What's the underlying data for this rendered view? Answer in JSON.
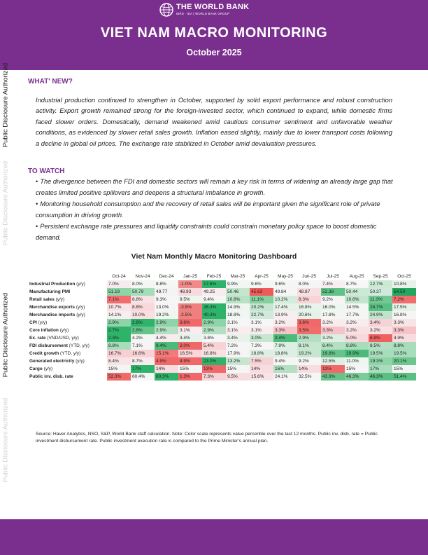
{
  "header": {
    "logo_name": "THE WORLD BANK",
    "logo_sub": "IBRD · IDA | WORLD BANK GROUP",
    "title": "VIET NAM MACRO MONITORING",
    "date": "October 2025"
  },
  "side_labels": [
    "Public Disclosure Authorized",
    "Public Disclosure Authorized",
    "Public Disclosure Authorized",
    "Public Disclosure Authorized"
  ],
  "whats_new": {
    "heading": "WHAT' NEW?",
    "text": "Industrial production continued to strengthen in October, supported by solid export performance and robust construction activity. Export growth remained strong for the foreign-invested sector, which continued to expand, while domestic firms faced slower orders. Domestically, demand weakened amid cautious consumer sentiment and unfavorable weather conditions, as evidenced by slower retail sales growth. Inflation eased slightly, mainly due to lower transport costs following a decline in global oil prices. The exchange rate stabilized in October amid devaluation pressures."
  },
  "to_watch": {
    "heading": "TO WATCH",
    "bullet": "•",
    "items": [
      "The divergence between the FDI and domestic sectors will remain a key risk in terms of widening an already large gap that creates limited positive spillovers and deepens a structural imbalance in growth.",
      "Monitoring household consumption and the recovery of retail sales will be important given the significant role of private consumption in driving growth.",
      "Persistent exchange rate pressures and liquidity constraints could constrain monetary policy space to boost domestic demand."
    ]
  },
  "dashboard": {
    "title": "Viet Nam Monthly Macro Monitoring Dashboard",
    "months": [
      "Oct-24",
      "Nov-24",
      "Dec-24",
      "Jan-25",
      "Feb-25",
      "Mar-25",
      "Apr-25",
      "May-25",
      "Jun-25",
      "Jul-25",
      "Aug-25",
      "Sep-25",
      "Oct-25"
    ],
    "rows": [
      {
        "name": "Industrial Production",
        "unit": " (y/y)",
        "values": [
          "7.0%",
          "8.0%",
          "8.8%",
          "-1.0%",
          "17.6%",
          "9.9%",
          "9.6%",
          "9.6%",
          "8.0%",
          "7.4%",
          "8.7%",
          "12.7%",
          "10.8%"
        ],
        "colors": [
          "#f6ecee",
          "#f3f6f3",
          "#f5f7f5",
          "#f08a8a",
          "#2eb36a",
          "#f0f6f1",
          "#f3f6f3",
          "#f3f6f3",
          "#f5f5f5",
          "#f7eef0",
          "#f6f7f6",
          "#cbe9d5",
          "#e7f3ea"
        ]
      },
      {
        "name": "Manufacturing PMI",
        "unit": "",
        "values": [
          "51.19",
          "50.79",
          "49.77",
          "48.93",
          "49.25",
          "50.46",
          "45.63",
          "49.84",
          "48.87",
          "52.38",
          "50.44",
          "50.37",
          "54.50"
        ],
        "colors": [
          "#8ed4a8",
          "#a6ddb9",
          "#f3f3f3",
          "#f7dadd",
          "#f7ecee",
          "#c4e6cf",
          "#f15a5a",
          "#f5f5f5",
          "#f7e0e3",
          "#5fc287",
          "#cbe9d5",
          "#cfeada",
          "#22a75e"
        ]
      },
      {
        "name": "Retail sales",
        "unit": " (y/y)",
        "values": [
          "7.1%",
          "8.8%",
          "9.3%",
          "9.5%",
          "9.4%",
          "10.8%",
          "11.1%",
          "10.2%",
          "8.3%",
          "9.2%",
          "10.6%",
          "11.3%",
          "7.2%"
        ],
        "colors": [
          "#f26d6d",
          "#f8e2e5",
          "#f5f6f5",
          "#eef6f0",
          "#f3f6f3",
          "#b8e2c5",
          "#86d0a0",
          "#d5ecdd",
          "#f9d3d6",
          "#f5f5f5",
          "#c3e5cd",
          "#72c893",
          "#f26d6d"
        ]
      },
      {
        "name": "Merchandise exports",
        "unit": " (y/y)",
        "values": [
          "10.7%",
          "8.8%",
          "13.0%",
          "-3.8%",
          "26.3%",
          "14.9%",
          "20.2%",
          "17.4%",
          "16.8%",
          "16.0%",
          "14.5%",
          "24.7%",
          "17.5%"
        ],
        "colors": [
          "#f8e3e6",
          "#f9d8db",
          "#f5f5f5",
          "#f07f7f",
          "#2eb36a",
          "#f0f5f1",
          "#c6e6d0",
          "#e4f2e8",
          "#e8f4eb",
          "#eef6f0",
          "#f3f6f3",
          "#5abf82",
          "#e4f2e8"
        ]
      },
      {
        "name": "Merchandise imports",
        "unit": " (y/y)",
        "values": [
          "14.1%",
          "10.0%",
          "19.2%",
          "-2.5%",
          "40.3%",
          "18.8%",
          "22.7%",
          "13.9%",
          "20.6%",
          "17.8%",
          "17.7%",
          "24.9%",
          "16.8%"
        ],
        "colors": [
          "#f6eef0",
          "#f9dfe2",
          "#eef6f0",
          "#f07f7f",
          "#2eb36a",
          "#f0f6f1",
          "#cfeada",
          "#f7eef0",
          "#e4f2e8",
          "#f3f6f3",
          "#f3f6f3",
          "#c0e4cb",
          "#f5f5f5"
        ]
      },
      {
        "name": "CPI",
        "unit": " (y/y)",
        "values": [
          "2.9%",
          "2.8%",
          "2.9%",
          "3.6%",
          "2.9%",
          "3.1%",
          "3.1%",
          "3.2%",
          "3.6%",
          "3.2%",
          "3.2%",
          "3.4%",
          "3.3%"
        ],
        "colors": [
          "#8ed4a8",
          "#2eb36a",
          "#8ed4a8",
          "#f06868",
          "#8ed4a8",
          "#f5f6f5",
          "#f5f6f5",
          "#f8ecee",
          "#f06868",
          "#f8ecee",
          "#f8ecee",
          "#f7d3d7",
          "#f8e3e6"
        ]
      },
      {
        "name": "Core inflation",
        "unit": " (y/y)",
        "values": [
          "2.7%",
          "2.8%",
          "2.9%",
          "3.1%",
          "2.9%",
          "3.1%",
          "3.1%",
          "3.3%",
          "3.5%",
          "3.3%",
          "3.2%",
          "3.2%",
          "3.3%"
        ],
        "colors": [
          "#2eb36a",
          "#66c48b",
          "#b3e0c2",
          "#f8ecee",
          "#b3e0c2",
          "#f8ecee",
          "#f8ecee",
          "#f6c3c8",
          "#f26d6d",
          "#f6c3c8",
          "#f8e0e3",
          "#f8e0e3",
          "#f6c3c8"
        ]
      },
      {
        "name": "Ex. rate",
        "unit": " (VND/USD, y/y)",
        "values": [
          "2.3%",
          "4.2%",
          "4.4%",
          "3.4%",
          "3.8%",
          "3.4%",
          "3.0%",
          "2.4%",
          "2.9%",
          "3.2%",
          "5.0%",
          "6.9%",
          "4.9%"
        ],
        "colors": [
          "#2eb36a",
          "#f5f5f5",
          "#f8ecee",
          "#e7f3ea",
          "#f5f6f5",
          "#e7f3ea",
          "#c6e6d0",
          "#4cba78",
          "#b3e0c2",
          "#dcefe2",
          "#f8d8db",
          "#f06060",
          "#f8dde0"
        ]
      },
      {
        "name": "FDI disbursement",
        "unit": " (YTD, y/y)",
        "values": [
          "8.8%",
          "7.1%",
          "9.4%",
          "2.0%",
          "5.4%",
          "7.2%",
          "7.3%",
          "7.9%",
          "8.1%",
          "8.4%",
          "8.8%",
          "8.5%",
          "8.8%"
        ],
        "colors": [
          "#a8ddbb",
          "#f5f5f5",
          "#4cba78",
          "#f06868",
          "#f8d3d6",
          "#f5f5f5",
          "#f5f6f5",
          "#dcefe2",
          "#c6e6d0",
          "#b3e0c2",
          "#a8ddbb",
          "#b3e0c2",
          "#a8ddbb"
        ]
      },
      {
        "name": "Credit growth",
        "unit": " (YTD, y/y)",
        "values": [
          "16.7%",
          "16.6%",
          "15.1%",
          "16.5%",
          "16.8%",
          "17.9%",
          "18.8%",
          "18.8%",
          "19.2%",
          "19.8%",
          "19.9%",
          "19.5%",
          "19.5%"
        ],
        "colors": [
          "#f8d0d4",
          "#f8d3d6",
          "#f27a7a",
          "#f8d8db",
          "#f8e0e3",
          "#f5f5f5",
          "#dcefe2",
          "#dcefe2",
          "#c6e6d0",
          "#66c48b",
          "#4cba78",
          "#a8ddbb",
          "#a8ddbb"
        ]
      },
      {
        "name": "Generated electricity",
        "unit": " (y/y)",
        "values": [
          "8.4%",
          "8.7%",
          "4.9%",
          "4.9%",
          "23.0%",
          "13.2%",
          "7.5%",
          "9.4%",
          "9.2%",
          "12.5%",
          "11.0%",
          "19.3%",
          "20.1%"
        ],
        "colors": [
          "#f8e3e6",
          "#f8ecee",
          "#f06868",
          "#f06868",
          "#2eb36a",
          "#c6e6d0",
          "#f8d3d6",
          "#f5f5f5",
          "#f5f5f5",
          "#dcefe2",
          "#edf6ef",
          "#8ed4a8",
          "#6cc68e"
        ]
      },
      {
        "name": "Cargo",
        "unit": " (y/y)",
        "values": [
          "15%",
          "17%",
          "14%",
          "15%",
          "13%",
          "15%",
          "14%",
          "16%",
          "14%",
          "13%",
          "15%",
          "17%",
          "15%"
        ],
        "colors": [
          "#f5f5f5",
          "#2eb36a",
          "#f8dde0",
          "#f5f5f5",
          "#f06868",
          "#f5f5f5",
          "#f8dde0",
          "#b3e0c2",
          "#f8dde0",
          "#f06868",
          "#f5f5f5",
          "#a8ddbb",
          "#f5f5f5"
        ]
      },
      {
        "name": "Public inv. disb. rate",
        "unit": "",
        "values": [
          "52.3%",
          "60.4%",
          "80.3%",
          "1.3%",
          "7.3%",
          "9.5%",
          "15.6%",
          "24.1%",
          "32.5%",
          "43.9%",
          "46.3%",
          "46.3%",
          "51.4%"
        ],
        "colors": [
          "#f06868",
          "#f5f6f5",
          "#2eb36a",
          "#f06868",
          "#f8d3d6",
          "#f8dde0",
          "#f8e3e6",
          "#f5f5f5",
          "#f5f6f5",
          "#66c48b",
          "#7acd98",
          "#5abf82",
          "#5abf82"
        ]
      }
    ]
  },
  "footnote": "Source: Haver Analytics, NSO, S&P, World Bank staff calculation. Note: Color scale represents value percentile over the last 12 months. Public inv. disb. rate = Public investment disbursement rate. Public investment execution rate is compared to the Prime Minister’s annual plan."
}
